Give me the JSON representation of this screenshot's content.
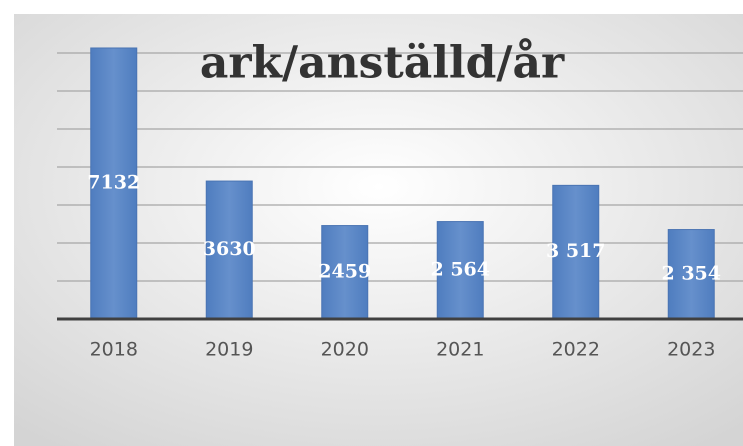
{
  "chart_data": {
    "type": "bar",
    "title": "ark/anställd/år",
    "categories": [
      "2018",
      "2019",
      "2020",
      "2021",
      "2022",
      "2023"
    ],
    "values": [
      7132,
      3630,
      2459,
      2564,
      3517,
      2354
    ],
    "value_labels": [
      "7132",
      "3630",
      "2459",
      "2 564",
      "3 517",
      "2 354"
    ],
    "color": "#5b87c5",
    "ylim": [
      0,
      8000
    ],
    "yticks": [
      0,
      1000,
      2000,
      3000,
      4000,
      5000,
      6000,
      7000
    ],
    "grid": true
  }
}
